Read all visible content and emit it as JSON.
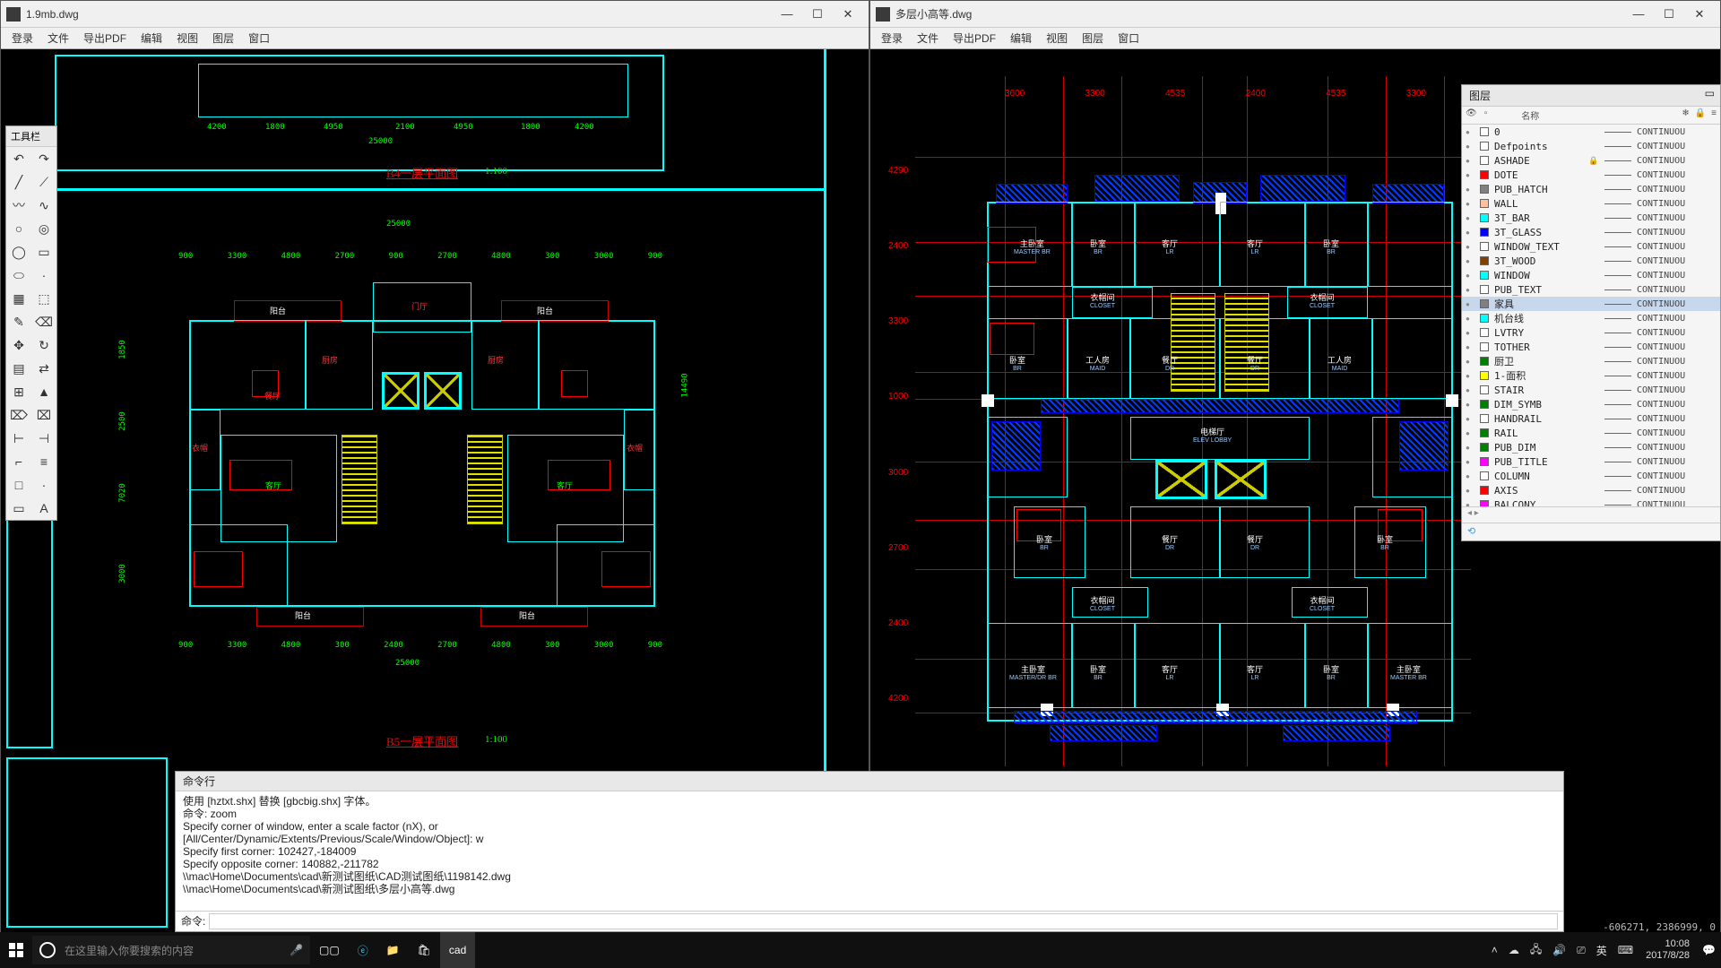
{
  "left_window": {
    "title": "1.9mb.dwg",
    "menu": [
      "登录",
      "文件",
      "导出PDF",
      "编辑",
      "视图",
      "图层",
      "窗口"
    ]
  },
  "right_window": {
    "title": "多层小高等.dwg",
    "menu": [
      "登录",
      "文件",
      "导出PDF",
      "编辑",
      "视图",
      "图层",
      "窗口"
    ]
  },
  "tool_palette": {
    "title": "工具栏",
    "tools": [
      "↶",
      "↷",
      "╱",
      "⟋",
      "〰",
      "∿",
      "○",
      "◎",
      "◯",
      "▭",
      "⬭",
      "·",
      "▦",
      "⬚",
      "✎",
      "⌫",
      "✥",
      "↻",
      "▤",
      "⇄",
      "⊞",
      "▲",
      "⌦",
      "⌧",
      "⊢",
      "⊣",
      "⌐",
      "≡",
      "□",
      "·",
      "▭",
      "A"
    ]
  },
  "layer_panel": {
    "title": "图层",
    "head_name": "名称",
    "selected_index": 12,
    "layers": [
      {
        "name": "0",
        "color": "#ffffff",
        "linetype": "CONTINUOU"
      },
      {
        "name": "Defpoints",
        "color": "#ffffff",
        "linetype": "CONTINUOU"
      },
      {
        "name": "ASHADE",
        "color": "#ffffff",
        "linetype": "CONTINUOU",
        "locked": true
      },
      {
        "name": "DOTE",
        "color": "#ff0000",
        "linetype": "CONTINUOU"
      },
      {
        "name": "PUB_HATCH",
        "color": "#808080",
        "linetype": "CONTINUOU"
      },
      {
        "name": "WALL",
        "color": "#ffc0a0",
        "linetype": "CONTINUOU"
      },
      {
        "name": "3T_BAR",
        "color": "#00ffff",
        "linetype": "CONTINUOU"
      },
      {
        "name": "3T_GLASS",
        "color": "#0000ff",
        "linetype": "CONTINUOU"
      },
      {
        "name": "WINDOW_TEXT",
        "color": "#ffffff",
        "linetype": "CONTINUOU"
      },
      {
        "name": "3T_WOOD",
        "color": "#804000",
        "linetype": "CONTINUOU"
      },
      {
        "name": "WINDOW",
        "color": "#00ffff",
        "linetype": "CONTINUOU"
      },
      {
        "name": "PUB_TEXT",
        "color": "#ffffff",
        "linetype": "CONTINUOU"
      },
      {
        "name": "家具",
        "color": "#808080",
        "linetype": "CONTINUOU"
      },
      {
        "name": "机台线",
        "color": "#00ffff",
        "linetype": "CONTINUOU"
      },
      {
        "name": "LVTRY",
        "color": "#ffffff",
        "linetype": "CONTINUOU"
      },
      {
        "name": "TOTHER",
        "color": "#ffffff",
        "linetype": "CONTINUOU"
      },
      {
        "name": "厨卫",
        "color": "#008000",
        "linetype": "CONTINUOU"
      },
      {
        "name": "1-面积",
        "color": "#ffff00",
        "linetype": "CONTINUOU"
      },
      {
        "name": "STAIR",
        "color": "#ffffff",
        "linetype": "CONTINUOU"
      },
      {
        "name": "DIM_SYMB",
        "color": "#008000",
        "linetype": "CONTINUOU"
      },
      {
        "name": "HANDRAIL",
        "color": "#ffffff",
        "linetype": "CONTINUOU"
      },
      {
        "name": "RAIL",
        "color": "#008000",
        "linetype": "CONTINUOU"
      },
      {
        "name": "PUB_DIM",
        "color": "#008000",
        "linetype": "CONTINUOU"
      },
      {
        "name": "PUB_TITLE",
        "color": "#ff00ff",
        "linetype": "CONTINUOU"
      },
      {
        "name": "COLUMN",
        "color": "#ffffff",
        "linetype": "CONTINUOU"
      },
      {
        "name": "AXIS",
        "color": "#ff0000",
        "linetype": "CONTINUOU"
      },
      {
        "name": "BALCONY",
        "color": "#ff00ff",
        "linetype": "CONTINUOU"
      }
    ]
  },
  "command": {
    "title": "命令行",
    "lines": [
      "使用 [hztxt.shx] 替换 [gbcbig.shx] 字体。",
      "命令: zoom",
      "Specify corner of window, enter a scale factor (nX), or",
      "[All/Center/Dynamic/Extents/Previous/Scale/Window/Object]<real time>: w",
      "Specify first corner: 102427,-184009",
      "Specify opposite corner: 140882,-211782",
      "\\\\mac\\Home\\Documents\\cad\\新测试图纸\\CAD测试图纸\\1198142.dwg",
      "\\\\mac\\Home\\Documents\\cad\\新测试图纸\\多层小高等.dwg"
    ],
    "prompt": "命令:"
  },
  "status_coord": "-606271, 2386999, 0",
  "floorplan_left": {
    "title1": "B4一层平面图",
    "scale1": "1:100",
    "title2": "B5一层平面图",
    "scale2": "1:100",
    "dims_top": [
      "900",
      "3300",
      "4800",
      "2700",
      "900",
      "2700",
      "4800",
      "300",
      "3000",
      "900"
    ],
    "dims_bot": [
      "900",
      "3300",
      "4800",
      "300",
      "2400",
      "2700",
      "4800",
      "300",
      "3000",
      "900"
    ],
    "total": "25000",
    "rooms": [
      "阳台",
      "餐厅",
      "厨房",
      "客厅",
      "衣帽",
      "阳台",
      "客厅",
      "阳台"
    ]
  },
  "floorplan_right": {
    "dims_top": [
      "3600",
      "3300",
      "4535",
      "2400",
      "4535",
      "3300"
    ],
    "dims_left": [
      "4290",
      "2400",
      "3300",
      "1000",
      "3000",
      "2700",
      "2400",
      "4200"
    ],
    "rooms": [
      {
        "t": "主卧室",
        "s": "MASTER BR"
      },
      {
        "t": "卧室",
        "s": "BR"
      },
      {
        "t": "客厅",
        "s": "LR"
      },
      {
        "t": "客厅",
        "s": "LR"
      },
      {
        "t": "卧室",
        "s": "BR"
      },
      {
        "t": "衣帽间",
        "s": "CLOSET"
      },
      {
        "t": "衣帽间",
        "s": "CLOSET"
      },
      {
        "t": "卧室",
        "s": "BR"
      },
      {
        "t": "工人房",
        "s": "MAID"
      },
      {
        "t": "餐厅",
        "s": "DR"
      },
      {
        "t": "餐厅",
        "s": "DR"
      },
      {
        "t": "工人房",
        "s": "MAID"
      },
      {
        "t": "电梯厅",
        "s": "ELEV LOBBY"
      },
      {
        "t": "卧室",
        "s": "BR"
      },
      {
        "t": "餐厅",
        "s": "DR"
      },
      {
        "t": "餐厅",
        "s": "DR"
      },
      {
        "t": "卧室",
        "s": "BR"
      },
      {
        "t": "衣帽间",
        "s": "CLOSET"
      },
      {
        "t": "衣帽间",
        "s": "CLOSET"
      },
      {
        "t": "主卧室",
        "s": "MASTER/DR BR"
      },
      {
        "t": "卧室",
        "s": "BR"
      },
      {
        "t": "客厅",
        "s": "LR"
      },
      {
        "t": "客厅",
        "s": "LR"
      },
      {
        "t": "卧室",
        "s": "BR"
      },
      {
        "t": "主卧室",
        "s": "MASTER BR"
      }
    ]
  },
  "taskbar": {
    "search_placeholder": "在这里输入你要搜索的内容",
    "ime": "英",
    "time": "10:08",
    "date": "2017/8/28"
  },
  "colors": {
    "bg": "#000000",
    "cyan": "#00ffff",
    "red": "#ff0000",
    "green": "#00ff00",
    "yellow": "#dede00",
    "blue": "#0000ff",
    "white": "#ffffff",
    "wall": "#00e0e0"
  }
}
